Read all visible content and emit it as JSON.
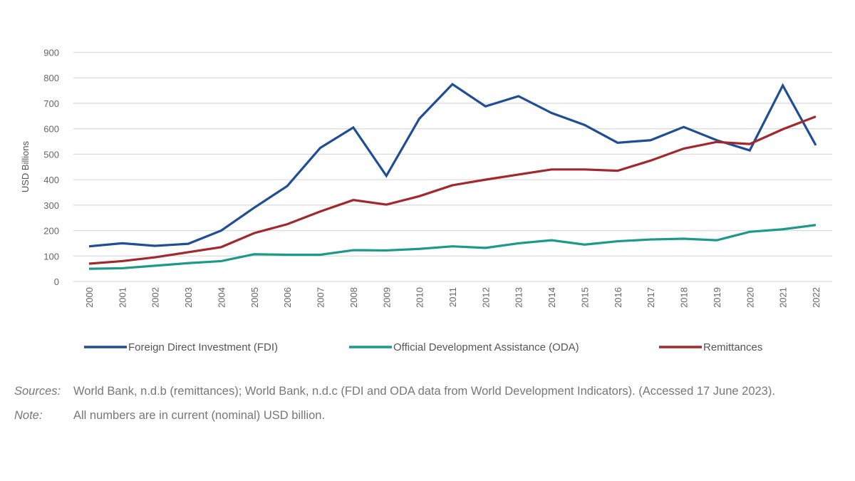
{
  "chart_data": {
    "type": "line",
    "ylabel": "USD Billions",
    "xlabel": "",
    "ylim": [
      0,
      900
    ],
    "yticks": [
      0,
      100,
      200,
      300,
      400,
      500,
      600,
      700,
      800,
      900
    ],
    "grid": true,
    "legend_placement": "bottom",
    "x": [
      "2000",
      "2001",
      "2002",
      "2003",
      "2004",
      "2005",
      "2006",
      "2007",
      "2008",
      "2009",
      "2010",
      "2011",
      "2012",
      "2013",
      "2014",
      "2015",
      "2016",
      "2017",
      "2018",
      "2019",
      "2020",
      "2021",
      "2022"
    ],
    "series": [
      {
        "name": "Foreign Direct Investment (FDI)",
        "color": "#1f4e96",
        "values": [
          138,
          150,
          140,
          148,
          200,
          290,
          375,
          525,
          605,
          415,
          640,
          775,
          688,
          728,
          662,
          615,
          545,
          555,
          607,
          555,
          515,
          770,
          535
        ]
      },
      {
        "name": "Official Development Assistance (ODA)",
        "color": "#1b9a8a",
        "values": [
          50,
          52,
          62,
          72,
          80,
          107,
          105,
          105,
          123,
          122,
          128,
          138,
          132,
          150,
          162,
          145,
          158,
          165,
          168,
          162,
          195,
          205,
          222
        ]
      },
      {
        "name": "Remittances",
        "color": "#a3282c",
        "values": [
          70,
          80,
          95,
          115,
          135,
          190,
          225,
          275,
          320,
          302,
          335,
          378,
          400,
          420,
          440,
          440,
          435,
          475,
          522,
          548,
          540,
          598,
          648
        ]
      }
    ]
  },
  "notes": {
    "sources_label": "Sources:",
    "sources_text": "World Bank, n.d.b (remittances); World Bank, n.d.c (FDI and ODA data from World Development Indicators). (Accessed 17  June 2023).",
    "note_label": "Note:",
    "note_text": "All numbers are in current (nominal) USD billion."
  }
}
